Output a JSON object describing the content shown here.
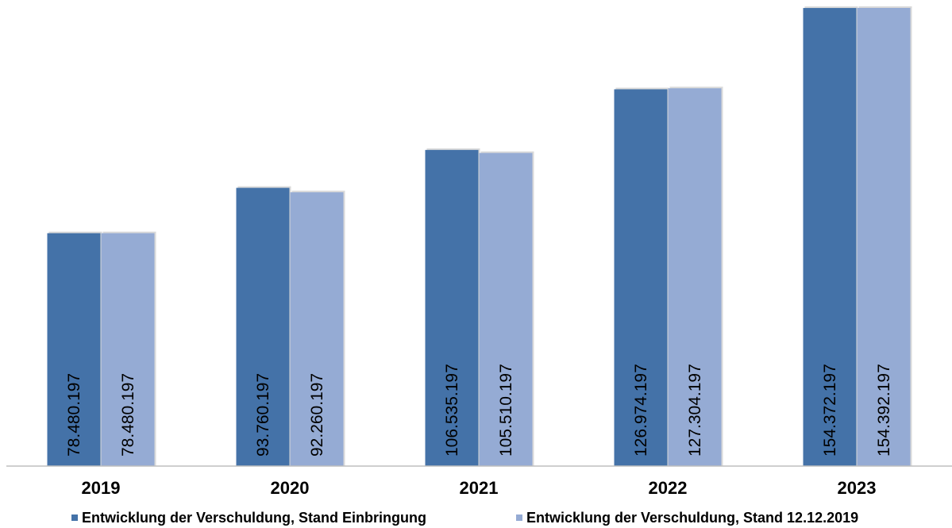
{
  "chart_data": {
    "type": "bar",
    "categories": [
      "2019",
      "2020",
      "2021",
      "2022",
      "2023"
    ],
    "series": [
      {
        "name": "Entwicklung der Verschuldung, Stand Einbringung",
        "color": "#4472a8",
        "values": [
          78480197,
          93760197,
          106535197,
          126974197,
          154372197
        ],
        "labels": [
          "78.480.197",
          "93.760.197",
          "106.535.197",
          "126.974.197",
          "154.372.197"
        ]
      },
      {
        "name": "Entwicklung der Verschuldung, Stand 12.12.2019",
        "color": "#95abd4",
        "values": [
          78480197,
          92260197,
          105510197,
          127304197,
          154392197
        ],
        "labels": [
          "78.480.197",
          "92.260.197",
          "105.510.197",
          "127.304.197",
          "154.392.197"
        ]
      }
    ],
    "ylim": [
      0,
      154392197
    ],
    "grid": false,
    "legend_position": "bottom"
  }
}
